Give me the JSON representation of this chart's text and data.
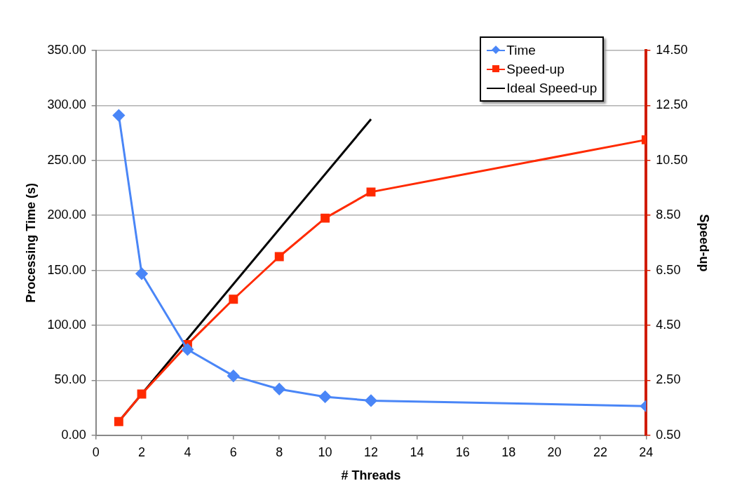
{
  "chart_data": {
    "type": "line",
    "xlabel": "# Threads",
    "ylabel": "Processing Time (s)",
    "y2label": "Speed-up",
    "xlim": [
      0,
      24
    ],
    "xticks": [
      0,
      2,
      4,
      6,
      8,
      10,
      12,
      14,
      16,
      18,
      20,
      22,
      24
    ],
    "ylim": [
      0,
      350
    ],
    "yticks": [
      {
        "value": 0,
        "label": "0.00"
      },
      {
        "value": 50,
        "label": "50.00"
      },
      {
        "value": 100,
        "label": "100.00"
      },
      {
        "value": 150,
        "label": "150.00"
      },
      {
        "value": 200,
        "label": "200.00"
      },
      {
        "value": 250,
        "label": "250.00"
      },
      {
        "value": 300,
        "label": "300.00"
      },
      {
        "value": 350,
        "label": "350.00"
      }
    ],
    "y2lim": [
      0.5,
      14.5
    ],
    "y2ticks": [
      {
        "value": 0.5,
        "label": "0.50"
      },
      {
        "value": 2.5,
        "label": "2.50"
      },
      {
        "value": 4.5,
        "label": "4.50"
      },
      {
        "value": 6.5,
        "label": "6.50"
      },
      {
        "value": 8.5,
        "label": "8.50"
      },
      {
        "value": 10.5,
        "label": "10.50"
      },
      {
        "value": 12.5,
        "label": "12.50"
      },
      {
        "value": 14.5,
        "label": "14.50"
      }
    ],
    "grid": "y",
    "legend": "top right",
    "series": [
      {
        "name": "Time",
        "color": "#4a86f7",
        "marker": "diamond",
        "x": [
          1,
          2,
          4,
          6,
          8,
          10,
          12,
          24
        ],
        "values": [
          291,
          147,
          78,
          54,
          42,
          35,
          31.5,
          26.5
        ]
      },
      {
        "name": "Speed-up",
        "color": "#ff2a00",
        "marker": "square",
        "axis": "y2",
        "x": [
          1,
          2,
          4,
          6,
          8,
          10,
          12,
          24
        ],
        "values": [
          1,
          2,
          3.8,
          5.45,
          7,
          8.4,
          9.35,
          11.25
        ]
      },
      {
        "name": "Ideal Speed-up",
        "color": "#000000",
        "marker": "none",
        "axis": "y2",
        "x": [
          1,
          12
        ],
        "values": [
          1,
          12
        ]
      }
    ]
  }
}
